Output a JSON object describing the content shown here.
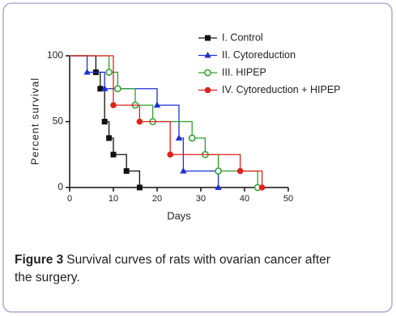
{
  "chart_data": {
    "type": "step",
    "y_label": "Percent survival",
    "x_label": "Days",
    "caption_label": "Figure 3",
    "caption": "Survival curves of rats with ovarian cancer after the surgery.",
    "xlim": [
      0,
      50
    ],
    "xticks": [
      0,
      10,
      20,
      30,
      40,
      50
    ],
    "ylim": [
      0,
      100
    ],
    "yticks": [
      0,
      50,
      100
    ],
    "series": [
      {
        "name": "I. Control",
        "color": "#111111",
        "marker": "square",
        "x": [
          0,
          6,
          7,
          8,
          9,
          10,
          13,
          16
        ],
        "values": [
          100,
          87.5,
          75,
          50,
          37.5,
          25,
          12.5,
          0
        ]
      },
      {
        "name": "II. Cytoreduction",
        "color": "#1f2fd6",
        "marker": "triangle",
        "x": [
          0,
          4,
          8,
          20,
          25,
          26,
          34
        ],
        "values": [
          100,
          87.5,
          75,
          62.5,
          37.5,
          12.5,
          0
        ]
      },
      {
        "name": "III. HIPEP",
        "color": "#2ca02c",
        "marker": "open-circle",
        "x": [
          0,
          9,
          11,
          15,
          19,
          28,
          31,
          34,
          43
        ],
        "values": [
          100,
          87.5,
          75,
          62.5,
          50,
          37.5,
          25,
          12.5,
          0
        ]
      },
      {
        "name": "IV. Cytoreduction + HIPEP",
        "color": "#e0201b",
        "marker": "circle",
        "x": [
          0,
          10,
          16,
          23,
          39,
          44
        ],
        "values": [
          100,
          62.5,
          50,
          25,
          12.5,
          0
        ]
      }
    ]
  }
}
